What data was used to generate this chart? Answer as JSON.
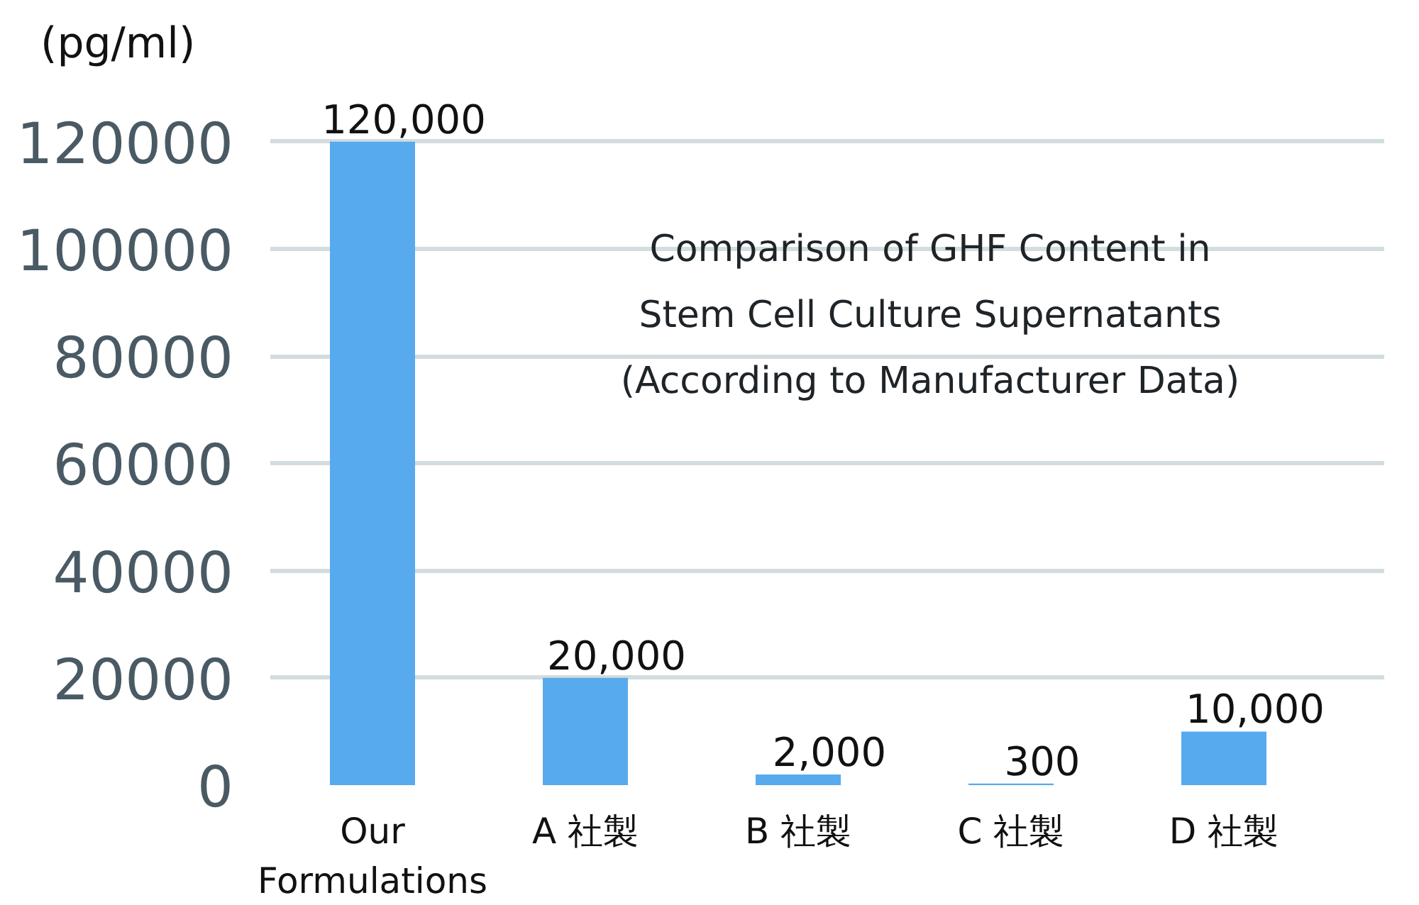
{
  "chart_data": {
    "type": "bar",
    "title": "Comparison of GHF Content in\nStem Cell Culture Supernatants\n(According to Manufacturer Data)",
    "ylabel": "(pg/ml)",
    "categories": [
      "Our Formulations",
      "A 社製",
      "B 社製",
      "C 社製",
      "D 社製"
    ],
    "values": [
      120000,
      20000,
      2000,
      300,
      10000
    ],
    "color": "#58aaee",
    "value_labels": [
      "120,000",
      "20,000",
      "2,000",
      "300",
      "10,000"
    ],
    "ylim": [
      0,
      120000
    ],
    "yticks": [
      0,
      20000,
      40000,
      60000,
      80000,
      100000,
      120000
    ],
    "grid": "y"
  }
}
